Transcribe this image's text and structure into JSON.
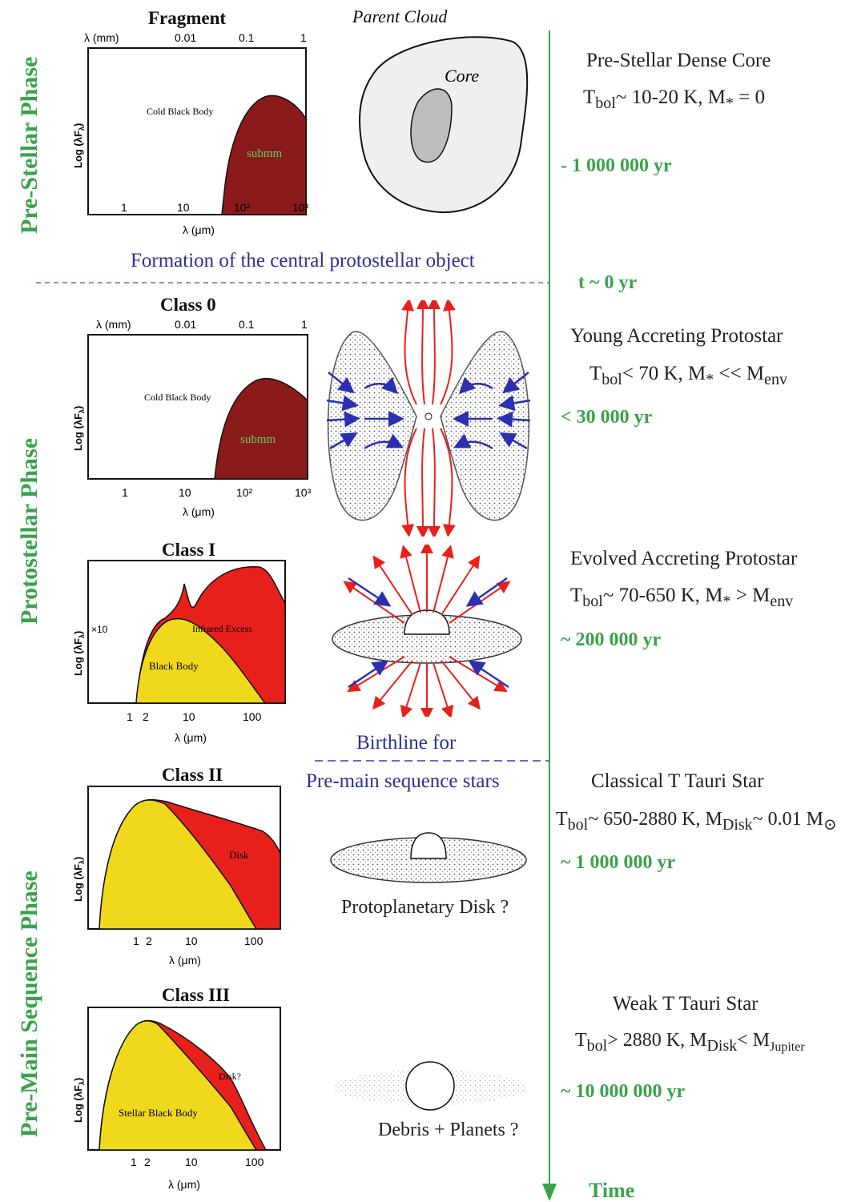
{
  "phases": {
    "prestellar": "Pre-Stellar Phase",
    "protostellar": "Protostellar Phase",
    "premain": "Pre-Main Sequence Phase"
  },
  "panels": {
    "fragment": {
      "title": "Fragment",
      "top_axis": "λ (mm)",
      "top_ticks": [
        "0.01",
        "0.1",
        "1"
      ],
      "ylabel": "Log (λF",
      "ylabel_sub": "λ",
      "xlabel": "λ (μm)",
      "xticks": [
        "1",
        "10",
        "10²",
        "10³"
      ],
      "label_body": "Cold Black Body",
      "label_excess": "submm"
    },
    "class0": {
      "title": "Class 0",
      "top_axis": "λ (mm)",
      "top_ticks": [
        "0.01",
        "0.1",
        "1"
      ],
      "ylabel": "Log (λF",
      "ylabel_sub": "λ",
      "xlabel": "λ (μm)",
      "xticks": [
        "1",
        "10",
        "10²",
        "10³"
      ],
      "label_body": "Cold Black Body",
      "label_excess": "submm"
    },
    "class1": {
      "title": "Class I",
      "ylabel": "Log (λF",
      "ylabel_sub": "λ",
      "scale_note": "×10",
      "xlabel": "λ (μm)",
      "xticks": [
        "1",
        "2",
        "10",
        "100"
      ],
      "label_body": "Black Body",
      "label_excess": "Infrared Excess"
    },
    "class2": {
      "title": "Class II",
      "ylabel": "Log (λF",
      "ylabel_sub": "λ",
      "xlabel": "λ (μm)",
      "xticks": [
        "1",
        "2",
        "10",
        "100"
      ],
      "label_excess": "Disk"
    },
    "class3": {
      "title": "Class III",
      "ylabel": "Log (λF",
      "ylabel_sub": "λ",
      "xlabel": "λ (μm)",
      "xticks": [
        "1",
        "2",
        "10",
        "100"
      ],
      "label_body": "Stellar Black Body",
      "label_excess": "Disk?"
    }
  },
  "illustrations": {
    "parent_cloud": "Parent Cloud",
    "core": "Core",
    "protoplanetary": "Protoplanetary Disk ?",
    "debris": "Debris + Planets ?"
  },
  "transitions": {
    "formation": "Formation of the central protostellar object",
    "birthline_1": "Birthline for",
    "birthline_2": "Pre-main sequence stars"
  },
  "stages": [
    {
      "name": "Pre-Stellar Dense Core",
      "time": "- 1 000 000 yr"
    },
    {
      "name": "Young Accreting Protostar",
      "time": "< 30 000 yr"
    },
    {
      "name": "Evolved Accreting Protostar",
      "time": "~ 200 000 yr"
    },
    {
      "name": "Classical T Tauri Star",
      "time": "~ 1 000 000 yr"
    },
    {
      "name": "Weak T Tauri Star",
      "time": "~ 10 000 000 yr"
    }
  ],
  "formulas": {
    "f1": {
      "a": "T",
      "a_sub": "bol",
      "b": "~ 10-20 K,  M",
      "b_sub": "*",
      "c": "= 0"
    },
    "f2": {
      "a": "T",
      "a_sub": "bol",
      "b": "< 70 K,  M",
      "b_sub": "*",
      "c": " << M",
      "c_sub": "env"
    },
    "f3": {
      "a": "T",
      "a_sub": "bol",
      "b": "~ 70-650 K,  M",
      "b_sub": "*",
      "c": " > M",
      "c_sub": "env"
    },
    "f4": {
      "a": "T",
      "a_sub": "bol",
      "b": "~ 650-2880 K,  M",
      "b_sub": "Disk",
      "c": "~ 0.01 M",
      "c_sub": "⊙"
    },
    "f5": {
      "a": "T",
      "a_sub": "bol",
      "b": "> 2880 K,  M",
      "b_sub": "Disk",
      "c": "< M",
      "c_sub": "Jupiter"
    }
  },
  "timeline": {
    "t0": "t ~ 0 yr",
    "axis_label": "Time"
  },
  "colors": {
    "green": "#3aa24a",
    "blue": "#2b2f93",
    "darkred": "#8b1a1a",
    "red": "#e8201c",
    "yellow": "#f0d81c",
    "dash": "#6a6ac8"
  }
}
